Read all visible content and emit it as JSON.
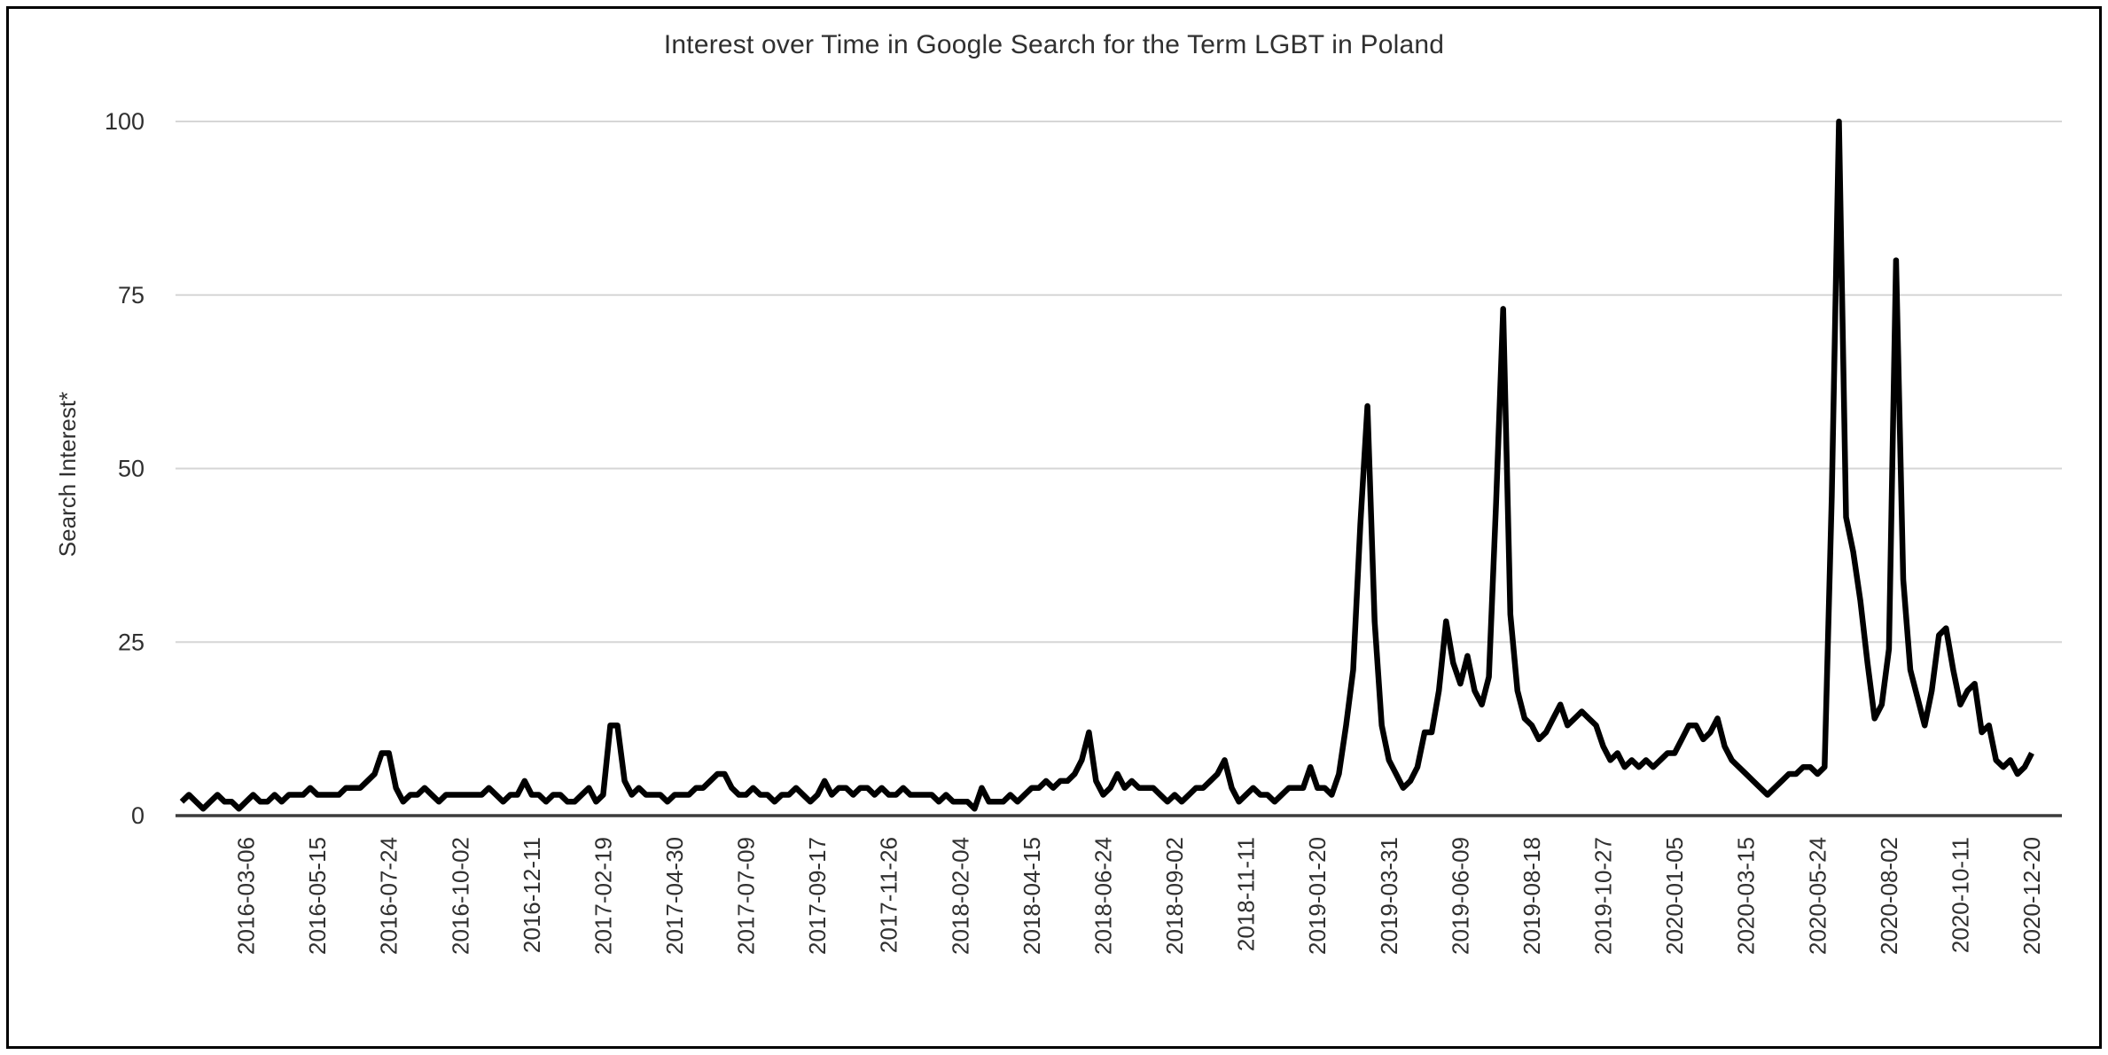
{
  "page": {
    "background": "#ffffff",
    "border_color": "#000000"
  },
  "chart_data": {
    "type": "line",
    "title": "Interest over Time in Google Search for the Term LGBT in Poland",
    "ylabel": "Search Interest*",
    "xlabel": "",
    "ylim": [
      0,
      100
    ],
    "y_ticks": [
      0,
      25,
      50,
      75,
      100
    ],
    "grid": "horizontal gridlines at 25/50/75/100, dark baseline at 0",
    "legend_position": "none",
    "line_color": "#000000",
    "x_frequency": "weekly",
    "x_first_point_date": "2016-01-03",
    "x_first_tick_index": 9,
    "x_tick_every_n_points": 10,
    "x_tick_labels": [
      "2016-03-06",
      "2016-05-15",
      "2016-07-24",
      "2016-10-02",
      "2016-12-11",
      "2017-02-19",
      "2017-04-30",
      "2017-07-09",
      "2017-09-17",
      "2017-11-26",
      "2018-02-04",
      "2018-04-15",
      "2018-06-24",
      "2018-09-02",
      "2018-11-11",
      "2019-01-20",
      "2019-03-31",
      "2019-06-09",
      "2019-08-18",
      "2019-10-27",
      "2020-01-05",
      "2020-03-15",
      "2020-05-24",
      "2020-08-02",
      "2020-10-11",
      "2020-12-20"
    ],
    "values": [
      2,
      3,
      2,
      1,
      2,
      3,
      2,
      2,
      1,
      2,
      3,
      2,
      2,
      3,
      2,
      3,
      3,
      3,
      4,
      3,
      3,
      3,
      3,
      4,
      4,
      4,
      5,
      6,
      9,
      9,
      4,
      2,
      3,
      3,
      4,
      3,
      2,
      3,
      3,
      3,
      3,
      3,
      3,
      4,
      3,
      2,
      3,
      3,
      5,
      3,
      3,
      2,
      3,
      3,
      2,
      2,
      3,
      4,
      2,
      3,
      13,
      13,
      5,
      3,
      4,
      3,
      3,
      3,
      2,
      3,
      3,
      3,
      4,
      4,
      5,
      6,
      6,
      4,
      3,
      3,
      4,
      3,
      3,
      2,
      3,
      3,
      4,
      3,
      2,
      3,
      5,
      3,
      4,
      4,
      3,
      4,
      4,
      3,
      4,
      3,
      3,
      4,
      3,
      3,
      3,
      3,
      2,
      3,
      2,
      2,
      2,
      1,
      4,
      2,
      2,
      2,
      3,
      2,
      3,
      4,
      4,
      5,
      4,
      5,
      5,
      6,
      8,
      12,
      5,
      3,
      4,
      6,
      4,
      5,
      4,
      4,
      4,
      3,
      2,
      3,
      2,
      3,
      4,
      4,
      5,
      6,
      8,
      4,
      2,
      3,
      4,
      3,
      3,
      2,
      3,
      4,
      4,
      4,
      7,
      4,
      4,
      3,
      6,
      13,
      21,
      42,
      59,
      28,
      13,
      8,
      6,
      4,
      5,
      7,
      12,
      12,
      18,
      28,
      22,
      19,
      23,
      18,
      16,
      20,
      45,
      73,
      29,
      18,
      14,
      13,
      11,
      12,
      14,
      16,
      13,
      14,
      15,
      14,
      13,
      10,
      8,
      9,
      7,
      8,
      7,
      8,
      7,
      8,
      9,
      9,
      11,
      13,
      13,
      11,
      12,
      14,
      10,
      8,
      7,
      6,
      5,
      4,
      3,
      4,
      5,
      6,
      6,
      7,
      7,
      6,
      7,
      46,
      100,
      43,
      38,
      31,
      22,
      14,
      16,
      24,
      80,
      34,
      21,
      17,
      13,
      18,
      26,
      27,
      21,
      16,
      18,
      19,
      12,
      13,
      8,
      7,
      8,
      6,
      7,
      9
    ]
  }
}
